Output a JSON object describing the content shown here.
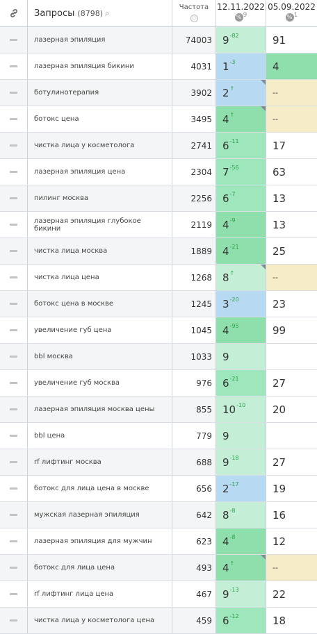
{
  "header": {
    "queries_label": "Запросы",
    "queries_count": "(8798)",
    "freq_label": "Частота",
    "date1": "12.11.2022",
    "date1_sup": "9",
    "date2": "05.09.2022",
    "date2_sup": "1"
  },
  "colors": {
    "light": "#c4eed6",
    "mid": "#9ee6bb",
    "blue": "#b8d9f2",
    "yellow": "#f7ecc8"
  },
  "rows": [
    {
      "q": "лазерная эпиляция",
      "f": "74003",
      "p1": "9",
      "c1": "-82",
      "b1": "light",
      "flag": false,
      "p2": "91",
      "b2": ""
    },
    {
      "q": "лазерная эпиляция бикини",
      "f": "4031",
      "p1": "1",
      "c1": "-3",
      "b1": "blue",
      "flag": false,
      "p2": "4",
      "b2": "grn4"
    },
    {
      "q": "ботулинотерапия",
      "f": "3902",
      "p1": "2",
      "c1": "↑",
      "b1": "blue",
      "flag": true,
      "p2": "--",
      "b2": "yel"
    },
    {
      "q": "ботокс цена",
      "f": "3495",
      "p1": "4",
      "c1": "↑",
      "b1": "grn4",
      "flag": true,
      "p2": "--",
      "b2": "yel"
    },
    {
      "q": "чистка лица у косметолога",
      "f": "2741",
      "p1": "6",
      "c1": "-11",
      "b1": "mid",
      "flag": false,
      "p2": "17",
      "b2": ""
    },
    {
      "q": "лазерная эпиляция цена",
      "f": "2304",
      "p1": "7",
      "c1": "-56",
      "b1": "mid",
      "flag": false,
      "p2": "63",
      "b2": ""
    },
    {
      "q": "пилинг москва",
      "f": "2256",
      "p1": "6",
      "c1": "-7",
      "b1": "mid",
      "flag": false,
      "p2": "13",
      "b2": ""
    },
    {
      "q": "лазерная эпиляция глубокое бикини",
      "f": "2119",
      "p1": "4",
      "c1": "-9",
      "b1": "grn4",
      "flag": false,
      "p2": "13",
      "b2": ""
    },
    {
      "q": "чистка лица москва",
      "f": "1889",
      "p1": "4",
      "c1": "-21",
      "b1": "grn4",
      "flag": false,
      "p2": "25",
      "b2": ""
    },
    {
      "q": "чистка лица цена",
      "f": "1268",
      "p1": "8",
      "c1": "↑",
      "b1": "light",
      "flag": true,
      "p2": "--",
      "b2": "yel"
    },
    {
      "q": "ботокс цена в москве",
      "f": "1245",
      "p1": "3",
      "c1": "-20",
      "b1": "blue",
      "flag": false,
      "p2": "23",
      "b2": ""
    },
    {
      "q": "увеличение губ цена",
      "f": "1045",
      "p1": "4",
      "c1": "-95",
      "b1": "grn4",
      "flag": false,
      "p2": "99",
      "b2": ""
    },
    {
      "q": "bbl москва",
      "f": "1033",
      "p1": "9",
      "c1": "",
      "b1": "light",
      "flag": false,
      "p2": "",
      "b2": ""
    },
    {
      "q": "увеличение губ москва",
      "f": "976",
      "p1": "6",
      "c1": "-21",
      "b1": "mid",
      "flag": false,
      "p2": "27",
      "b2": ""
    },
    {
      "q": "лазерная эпиляция москва цены",
      "f": "855",
      "p1": "10",
      "c1": "-10",
      "b1": "light",
      "flag": false,
      "p2": "20",
      "b2": ""
    },
    {
      "q": "bbl цена",
      "f": "779",
      "p1": "9",
      "c1": "",
      "b1": "light",
      "flag": false,
      "p2": "",
      "b2": ""
    },
    {
      "q": "rf лифтинг москва",
      "f": "688",
      "p1": "9",
      "c1": "-18",
      "b1": "light",
      "flag": false,
      "p2": "27",
      "b2": ""
    },
    {
      "q": "ботокс для лица цена в москве",
      "f": "656",
      "p1": "2",
      "c1": "-17",
      "b1": "blue",
      "flag": false,
      "p2": "19",
      "b2": ""
    },
    {
      "q": "мужская лазерная эпиляция",
      "f": "642",
      "p1": "8",
      "c1": "-8",
      "b1": "light",
      "flag": false,
      "p2": "16",
      "b2": ""
    },
    {
      "q": "лазерная эпиляция для мужчин",
      "f": "623",
      "p1": "4",
      "c1": "-8",
      "b1": "grn4",
      "flag": false,
      "p2": "12",
      "b2": ""
    },
    {
      "q": "ботокс для лица цена",
      "f": "493",
      "p1": "4",
      "c1": "↑",
      "b1": "grn4",
      "flag": true,
      "p2": "--",
      "b2": "yel"
    },
    {
      "q": "rf лифтинг лица цена",
      "f": "467",
      "p1": "9",
      "c1": "-13",
      "b1": "light",
      "flag": false,
      "p2": "22",
      "b2": ""
    },
    {
      "q": "чистка лица у косметолога цена",
      "f": "459",
      "p1": "6",
      "c1": "-12",
      "b1": "mid",
      "flag": false,
      "p2": "18",
      "b2": ""
    }
  ]
}
